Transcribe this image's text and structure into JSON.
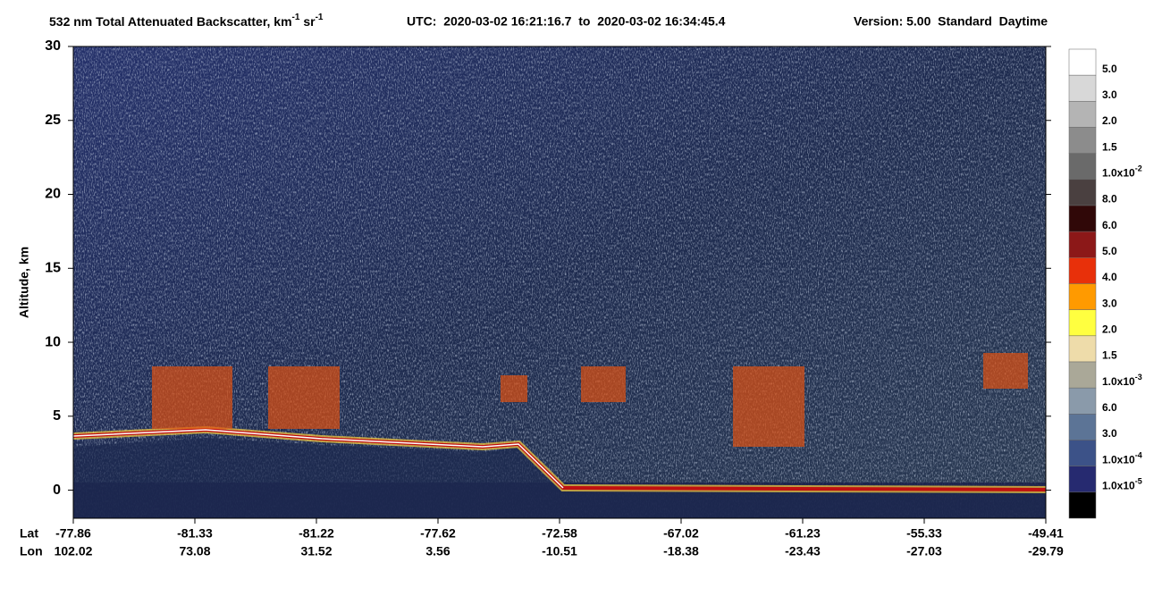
{
  "chart_data": {
    "type": "curtain",
    "title": {
      "main": "532 nm Total Attenuated Backscatter, km",
      "exp1": "-1",
      "unit2": " sr",
      "exp2": "-1",
      "time": "UTC:  2020-03-02 16:21:16.7  to  2020-03-02 16:34:45.4",
      "version": "Version: 5.00  Standard  Daytime"
    },
    "ylabel": "Altitude, km",
    "ylim": [
      -1.9,
      30
    ],
    "yticks": [
      0,
      5,
      10,
      15,
      20,
      25,
      30
    ],
    "row_labels": [
      "Lat",
      "Lon"
    ],
    "lat": [
      -77.86,
      -81.33,
      -81.22,
      -77.62,
      -72.58,
      -67.02,
      -61.23,
      -55.33,
      -49.41
    ],
    "lon": [
      102.02,
      73.08,
      31.52,
      3.56,
      -10.51,
      -18.38,
      -23.43,
      -27.03,
      -29.79
    ],
    "colorbar": {
      "colors": [
        "#ffffff",
        "#d8d8d8",
        "#b4b4b4",
        "#8c8c8c",
        "#6a6a6a",
        "#4a4040",
        "#300808",
        "#8c1818",
        "#e8300a",
        "#ff9a00",
        "#ffff40",
        "#eedcaa",
        "#aaa898",
        "#8a9aaa",
        "#5c7496",
        "#3c5288",
        "#262a70",
        "#000000"
      ],
      "labels": [
        {
          "text": "5.0"
        },
        {
          "text": "3.0"
        },
        {
          "text": "2.0"
        },
        {
          "text": "1.5"
        },
        {
          "text": "1.0x10",
          "exp": "-2"
        },
        {
          "text": "8.0"
        },
        {
          "text": "6.0"
        },
        {
          "text": "5.0"
        },
        {
          "text": "4.0"
        },
        {
          "text": "3.0"
        },
        {
          "text": "2.0"
        },
        {
          "text": "1.5"
        },
        {
          "text": "1.0x10",
          "exp": "-3"
        },
        {
          "text": "6.0"
        },
        {
          "text": "3.0"
        },
        {
          "text": "1.0x10",
          "exp": "-4"
        },
        {
          "text": "1.0x10",
          "exp": "-5"
        }
      ]
    }
  }
}
